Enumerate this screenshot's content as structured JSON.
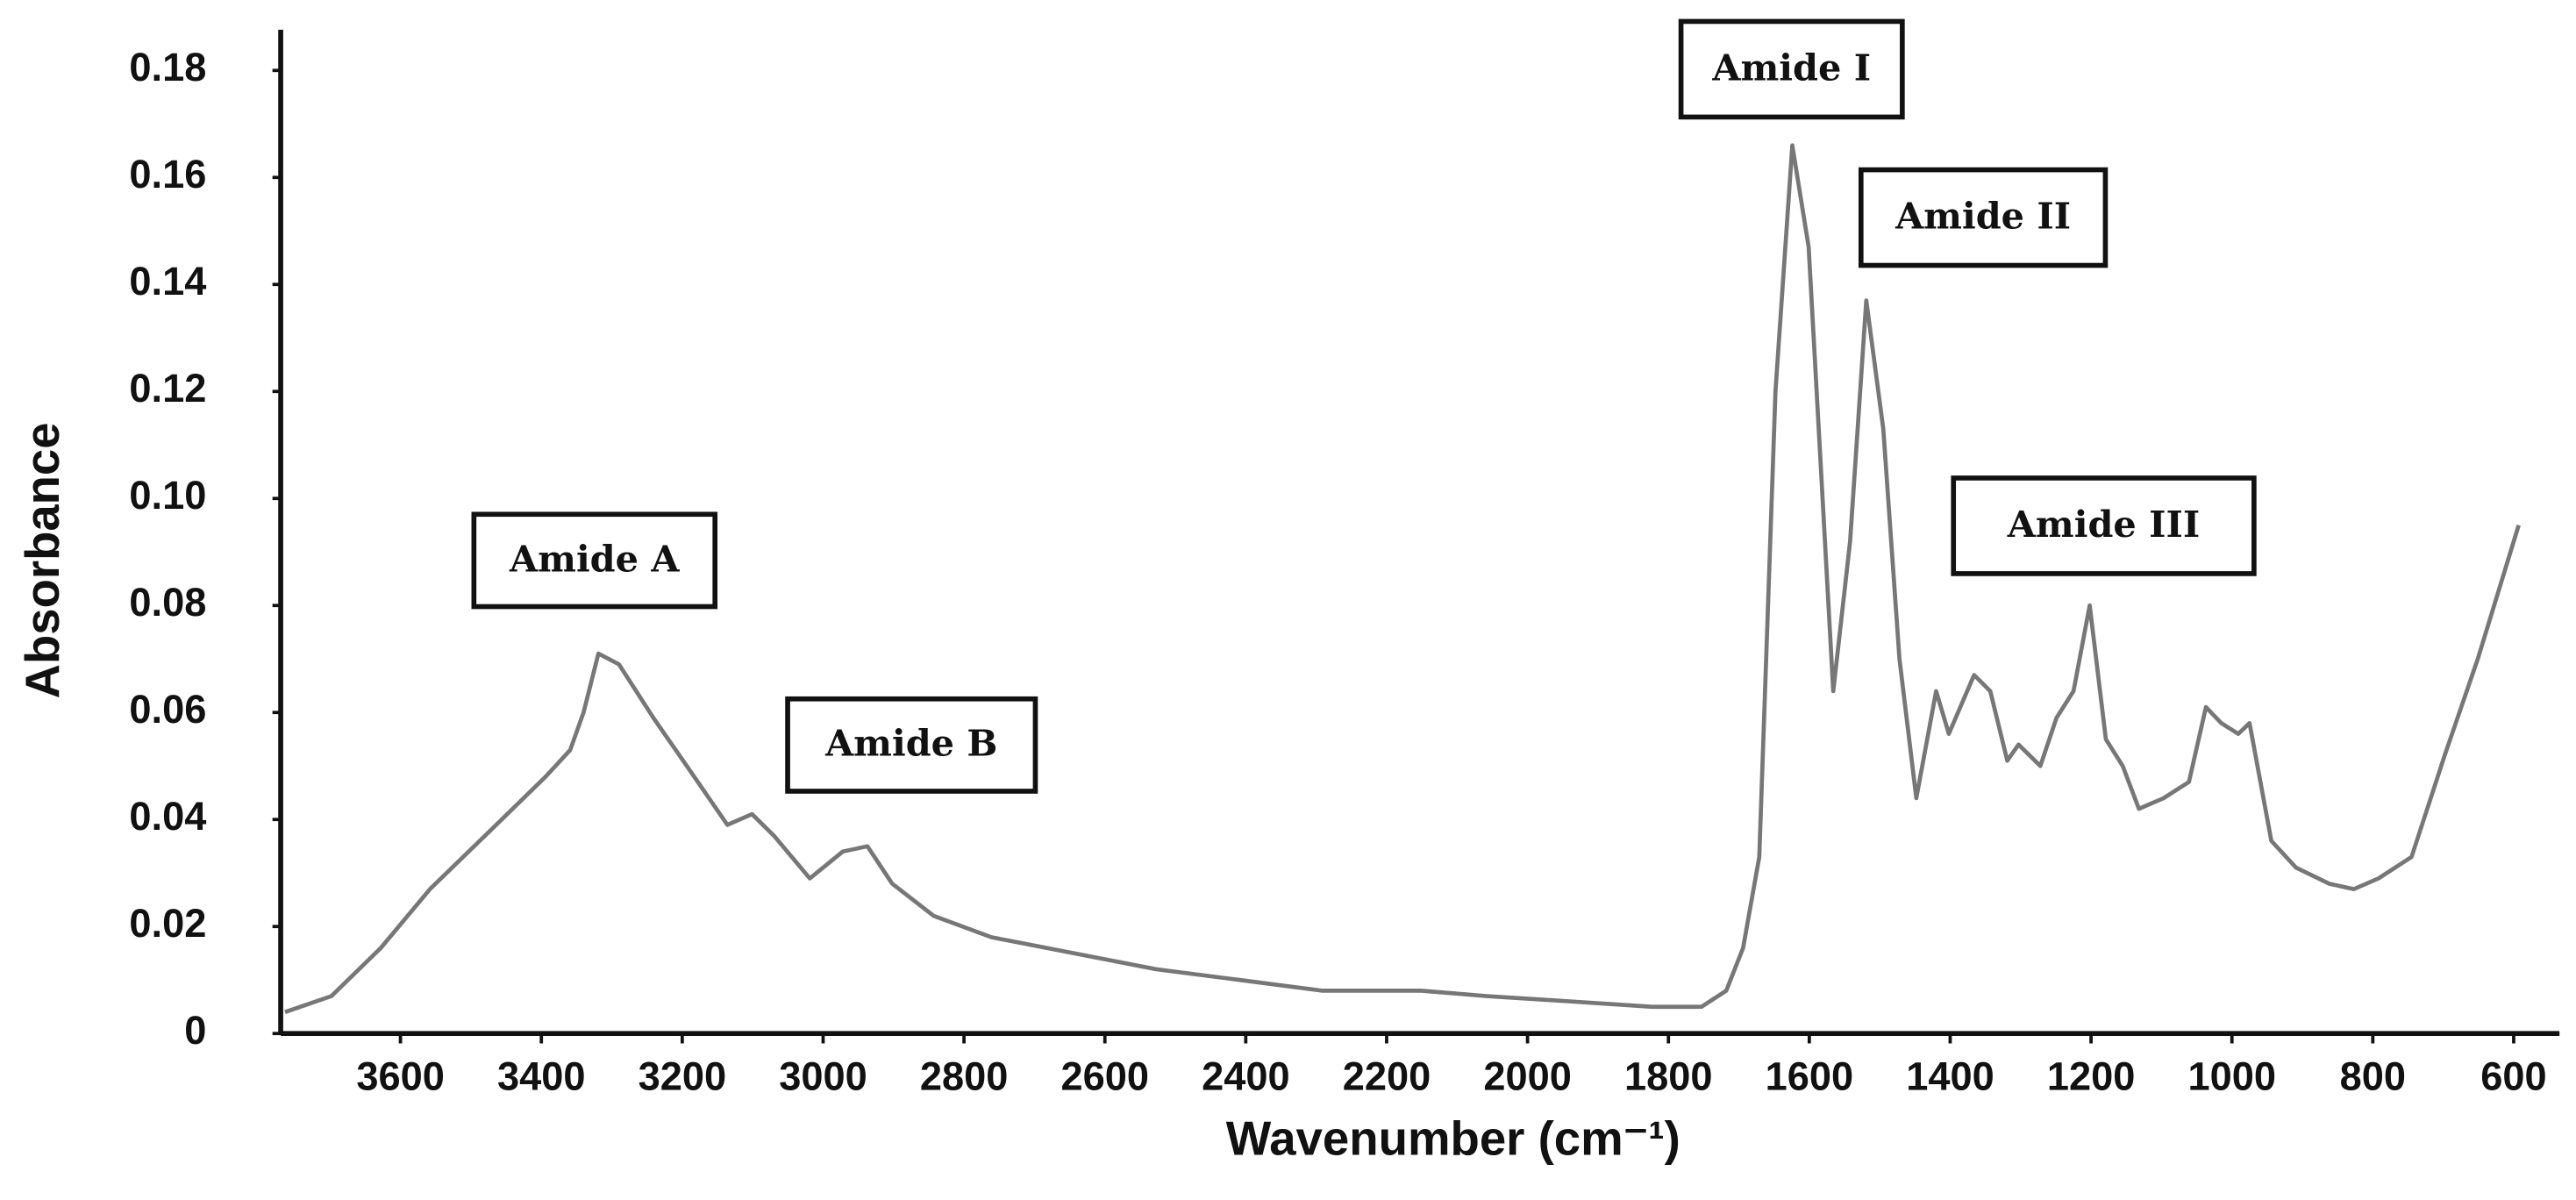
{
  "chart_data": {
    "type": "line",
    "x_label": "Wavenumber (cm⁻¹)",
    "y_label": "Absorbance",
    "x": [
      3764,
      3698,
      3628,
      3558,
      3464,
      3394,
      3359,
      3340,
      3319,
      3290,
      3241,
      3183,
      3136,
      3101,
      3070,
      3019,
      2972,
      2937,
      2902,
      2843,
      2761,
      2644,
      2527,
      2409,
      2292,
      2151,
      2058,
      1940,
      1823,
      1753,
      1718,
      1694,
      1671,
      1648,
      1624,
      1601,
      1566,
      1542,
      1519,
      1495,
      1472,
      1448,
      1420,
      1402,
      1366,
      1343,
      1319,
      1303,
      1272,
      1249,
      1225,
      1202,
      1179,
      1155,
      1132,
      1097,
      1061,
      1037,
      1015,
      991,
      975,
      944,
      909,
      862,
      827,
      792,
      745,
      698,
      651,
      593
    ],
    "values": [
      0.004,
      0.007,
      0.016,
      0.027,
      0.039,
      0.048,
      0.053,
      0.06,
      0.071,
      0.069,
      0.059,
      0.048,
      0.039,
      0.041,
      0.037,
      0.029,
      0.034,
      0.035,
      0.028,
      0.022,
      0.018,
      0.015,
      0.012,
      0.01,
      0.008,
      0.008,
      0.007,
      0.006,
      0.005,
      0.005,
      0.008,
      0.016,
      0.033,
      0.12,
      0.166,
      0.147,
      0.064,
      0.092,
      0.137,
      0.113,
      0.07,
      0.044,
      0.064,
      0.056,
      0.067,
      0.064,
      0.051,
      0.054,
      0.05,
      0.059,
      0.064,
      0.08,
      0.055,
      0.05,
      0.042,
      0.044,
      0.047,
      0.061,
      0.058,
      0.056,
      0.058,
      0.036,
      0.031,
      0.028,
      0.027,
      0.029,
      0.033,
      0.052,
      0.07,
      0.095
    ],
    "color": "#777777",
    "xlim": [
      3770,
      535
    ],
    "ylim": [
      0,
      0.187
    ],
    "xticks": [
      3600,
      3400,
      3200,
      3000,
      2800,
      2600,
      2400,
      2200,
      2000,
      1800,
      1600,
      1400,
      1200,
      1000,
      800,
      600
    ],
    "yticks": [
      0,
      0.02,
      0.04,
      0.06,
      0.08,
      {
        "value": 0.1,
        "label": "0.10"
      },
      0.12,
      0.14,
      0.16,
      0.18
    ],
    "annotations": [
      "Amide A",
      "Amide B",
      "Amide I",
      "Amide II",
      "Amide III"
    ]
  }
}
